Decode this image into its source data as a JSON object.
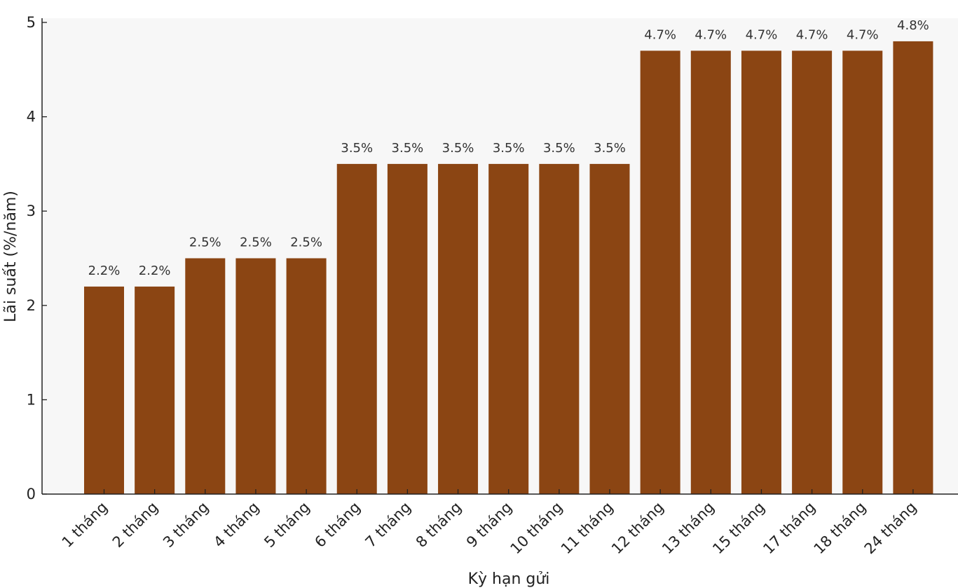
{
  "chart_data": {
    "type": "bar",
    "categories": [
      "1 tháng",
      "2 tháng",
      "3 tháng",
      "4 tháng",
      "5 tháng",
      "6 tháng",
      "7 tháng",
      "8 tháng",
      "9 tháng",
      "10 tháng",
      "11 tháng",
      "12 tháng",
      "13 tháng",
      "15 tháng",
      "17 tháng",
      "18 tháng",
      "24 tháng"
    ],
    "values": [
      2.2,
      2.2,
      2.5,
      2.5,
      2.5,
      3.5,
      3.5,
      3.5,
      3.5,
      3.5,
      3.5,
      4.7,
      4.7,
      4.7,
      4.7,
      4.7,
      4.8
    ],
    "data_labels": [
      "2.2%",
      "2.2%",
      "2.5%",
      "2.5%",
      "2.5%",
      "3.5%",
      "3.5%",
      "3.5%",
      "3.5%",
      "3.5%",
      "3.5%",
      "4.7%",
      "4.7%",
      "4.7%",
      "4.7%",
      "4.7%",
      "4.8%"
    ],
    "xlabel": "Kỳ hạn gửi",
    "ylabel": "Lãi suất (%/năm)",
    "ylim": [
      0,
      5
    ],
    "yticks": [
      "0",
      "1",
      "2",
      "3",
      "4",
      "5"
    ],
    "grid": false,
    "legend": "none",
    "colors": {
      "bar": "#8B4513",
      "plot_background": "#F7F7F7",
      "axis": "#222222"
    }
  }
}
